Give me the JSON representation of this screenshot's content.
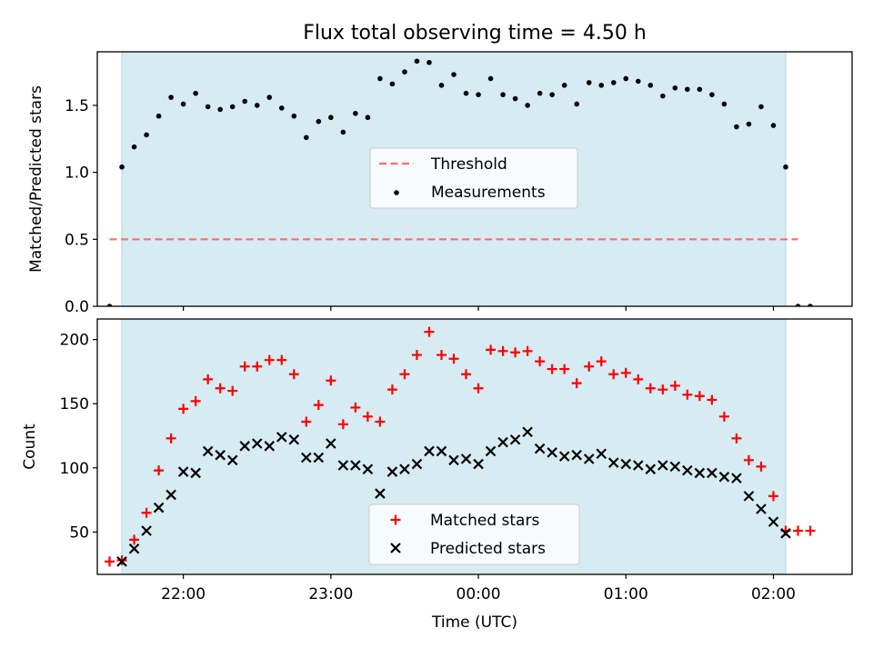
{
  "figure_title": "Flux total observing time = 4.50 h",
  "colors": {
    "observing_band": "#add8e6",
    "threshold": "#ff6b6b",
    "measurements": "#000000",
    "matched": "#ff0000",
    "predicted": "#000000"
  },
  "chart_data": [
    {
      "type": "scatter",
      "title": "Flux total observing time = 4.50 h",
      "ylabel": "Matched/Predicted stars",
      "xlabel": "",
      "xlim": [
        "21:25",
        "02:32"
      ],
      "ylim": [
        0,
        1.9
      ],
      "yticks": [
        0.0,
        0.5,
        1.0,
        1.5
      ],
      "ytick_labels": [
        "0.0",
        "0.5",
        "1.0",
        "1.5"
      ],
      "observing_window": [
        "21:35",
        "02:05"
      ],
      "legend_position": "center",
      "legend": [
        "Threshold",
        "Measurements"
      ],
      "threshold": {
        "name": "Threshold",
        "value": 0.5,
        "x_range": [
          "21:30",
          "02:10"
        ],
        "style": "dashed"
      },
      "series": [
        {
          "name": "Measurements",
          "x": [
            "21:30",
            "21:35",
            "21:40",
            "21:45",
            "21:50",
            "21:55",
            "22:00",
            "22:05",
            "22:10",
            "22:15",
            "22:20",
            "22:25",
            "22:30",
            "22:35",
            "22:40",
            "22:45",
            "22:50",
            "22:55",
            "23:00",
            "23:05",
            "23:10",
            "23:15",
            "23:20",
            "23:25",
            "23:30",
            "23:35",
            "23:40",
            "23:45",
            "23:50",
            "23:55",
            "00:00",
            "00:05",
            "00:10",
            "00:15",
            "00:20",
            "00:25",
            "00:30",
            "00:35",
            "00:40",
            "00:45",
            "00:50",
            "00:55",
            "01:00",
            "01:05",
            "01:10",
            "01:15",
            "01:20",
            "01:25",
            "01:30",
            "01:35",
            "01:40",
            "01:45",
            "01:50",
            "01:55",
            "02:00",
            "02:05",
            "02:10",
            "02:15"
          ],
          "y": [
            0.0,
            1.04,
            1.19,
            1.28,
            1.42,
            1.56,
            1.51,
            1.59,
            1.49,
            1.47,
            1.49,
            1.53,
            1.5,
            1.56,
            1.48,
            1.42,
            1.26,
            1.38,
            1.41,
            1.3,
            1.44,
            1.41,
            1.7,
            1.66,
            1.75,
            1.83,
            1.82,
            1.65,
            1.73,
            1.59,
            1.58,
            1.7,
            1.58,
            1.55,
            1.5,
            1.59,
            1.58,
            1.65,
            1.51,
            1.67,
            1.65,
            1.67,
            1.7,
            1.68,
            1.65,
            1.57,
            1.63,
            1.62,
            1.62,
            1.58,
            1.51,
            1.34,
            1.36,
            1.49,
            1.35,
            1.04,
            0.0,
            0.0
          ]
        }
      ]
    },
    {
      "type": "scatter",
      "title": "",
      "ylabel": "Count",
      "xlabel": "Time (UTC)",
      "xlim": [
        "21:25",
        "02:32"
      ],
      "ylim": [
        17,
        216
      ],
      "yticks": [
        50,
        100,
        150,
        200
      ],
      "ytick_labels": [
        "50",
        "100",
        "150",
        "200"
      ],
      "xticks": [
        "22:00",
        "23:00",
        "00:00",
        "01:00",
        "02:00"
      ],
      "observing_window": [
        "21:35",
        "02:05"
      ],
      "legend_position": "lower center",
      "legend": [
        "Matched stars",
        "Predicted stars"
      ],
      "series": [
        {
          "name": "Matched stars",
          "marker": "+",
          "x": [
            "21:30",
            "21:35",
            "21:40",
            "21:45",
            "21:50",
            "21:55",
            "22:00",
            "22:05",
            "22:10",
            "22:15",
            "22:20",
            "22:25",
            "22:30",
            "22:35",
            "22:40",
            "22:45",
            "22:50",
            "22:55",
            "23:00",
            "23:05",
            "23:10",
            "23:15",
            "23:20",
            "23:25",
            "23:30",
            "23:35",
            "23:40",
            "23:45",
            "23:50",
            "23:55",
            "00:00",
            "00:05",
            "00:10",
            "00:15",
            "00:20",
            "00:25",
            "00:30",
            "00:35",
            "00:40",
            "00:45",
            "00:50",
            "00:55",
            "01:00",
            "01:05",
            "01:10",
            "01:15",
            "01:20",
            "01:25",
            "01:30",
            "01:35",
            "01:40",
            "01:45",
            "01:50",
            "01:55",
            "02:00",
            "02:05",
            "02:10",
            "02:15"
          ],
          "y": [
            27,
            28,
            44,
            65,
            98,
            123,
            146,
            152,
            169,
            162,
            160,
            179,
            179,
            184,
            184,
            173,
            136,
            149,
            168,
            134,
            147,
            140,
            136,
            161,
            173,
            188,
            206,
            188,
            185,
            173,
            162,
            192,
            191,
            190,
            191,
            183,
            177,
            177,
            166,
            179,
            183,
            173,
            174,
            169,
            162,
            161,
            164,
            157,
            156,
            153,
            140,
            123,
            106,
            101,
            78,
            51,
            51,
            51
          ]
        },
        {
          "name": "Predicted stars",
          "marker": "x",
          "x": [
            "21:35",
            "21:40",
            "21:45",
            "21:50",
            "21:55",
            "22:00",
            "22:05",
            "22:10",
            "22:15",
            "22:20",
            "22:25",
            "22:30",
            "22:35",
            "22:40",
            "22:45",
            "22:50",
            "22:55",
            "23:00",
            "23:05",
            "23:10",
            "23:15",
            "23:20",
            "23:25",
            "23:30",
            "23:35",
            "23:40",
            "23:45",
            "23:50",
            "23:55",
            "00:00",
            "00:05",
            "00:10",
            "00:15",
            "00:20",
            "00:25",
            "00:30",
            "00:35",
            "00:40",
            "00:45",
            "00:50",
            "00:55",
            "01:00",
            "01:05",
            "01:10",
            "01:15",
            "01:20",
            "01:25",
            "01:30",
            "01:35",
            "01:40",
            "01:45",
            "01:50",
            "01:55",
            "02:00",
            "02:05"
          ],
          "y": [
            27,
            37,
            51,
            69,
            79,
            97,
            96,
            113,
            110,
            106,
            117,
            119,
            117,
            124,
            122,
            108,
            108,
            119,
            102,
            102,
            99,
            80,
            97,
            99,
            103,
            113,
            113,
            106,
            107,
            103,
            113,
            120,
            122,
            128,
            115,
            112,
            109,
            110,
            107,
            111,
            104,
            103,
            102,
            99,
            102,
            101,
            98,
            96,
            96,
            93,
            92,
            78,
            68,
            58,
            49
          ]
        }
      ]
    }
  ]
}
